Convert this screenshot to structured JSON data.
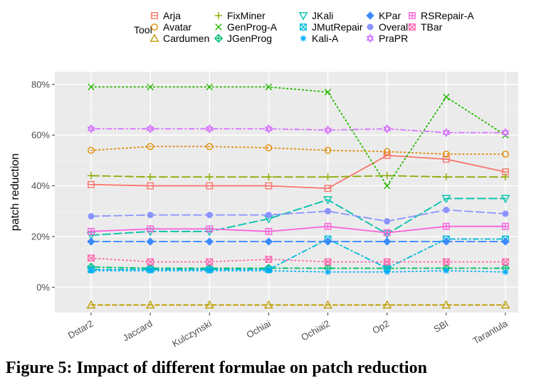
{
  "caption": "Figure 5: Impact of different formulae on patch reduction",
  "chart_data": {
    "type": "line",
    "ylabel": "patch reduction",
    "xlabel": "",
    "legend_title": "Tool",
    "legend_position": "top",
    "grid": true,
    "ylim": [
      -10,
      85
    ],
    "yticks": [
      0,
      20,
      40,
      60,
      80
    ],
    "ytick_labels": [
      "0%",
      "20%",
      "40%",
      "60%",
      "80%"
    ],
    "categories": [
      "Dstar2",
      "Jaccard",
      "Kulczynski",
      "Ochiai",
      "Ochiai2",
      "Op2",
      "SBI",
      "Tarantula"
    ],
    "series": [
      {
        "name": "Arja",
        "color": "#F8766D",
        "marker": "square-cross",
        "dash": "solid",
        "values": [
          40.5,
          40,
          40,
          40,
          39,
          52,
          50.5,
          45.5
        ]
      },
      {
        "name": "Avatar",
        "color": "#E18A00",
        "marker": "circle-open",
        "dash": "dotted",
        "values": [
          54,
          55.5,
          55.5,
          55,
          54,
          53.5,
          52.5,
          52.5
        ]
      },
      {
        "name": "Cardumen",
        "color": "#BE9C00",
        "marker": "triangle-open",
        "dash": "dashed",
        "values": [
          -7,
          -7,
          -7,
          -7,
          -7,
          -7,
          -7,
          -7
        ]
      },
      {
        "name": "FixMiner",
        "color": "#8CAB00",
        "marker": "plus",
        "dash": "longdash",
        "values": [
          44,
          43.5,
          43.5,
          43.5,
          43.5,
          44,
          43.5,
          43.5
        ]
      },
      {
        "name": "GenProg-A",
        "color": "#24B700",
        "marker": "x",
        "dash": "dotted",
        "values": [
          79,
          79,
          79,
          79,
          77,
          40,
          75,
          60
        ]
      },
      {
        "name": "JGenProg",
        "color": "#00BE70",
        "marker": "diamond-open",
        "dash": "dotdash",
        "values": [
          8,
          7.5,
          7.5,
          7.5,
          7.5,
          7.5,
          7.5,
          7.5
        ]
      },
      {
        "name": "JKali",
        "color": "#00C1AB",
        "marker": "triangle-down-open",
        "dash": "longdash",
        "values": [
          20.5,
          22,
          22,
          27,
          34.5,
          21,
          35,
          35
        ]
      },
      {
        "name": "JMutRepair",
        "color": "#00BBDA",
        "marker": "square-x",
        "dash": "dotdash",
        "values": [
          7,
          7,
          7,
          7,
          19,
          7.5,
          19,
          19
        ]
      },
      {
        "name": "Kali-A",
        "color": "#00ACFC",
        "marker": "asterisk",
        "dash": "dotted",
        "values": [
          6.5,
          6.5,
          6.5,
          6.5,
          6,
          6,
          6.5,
          6
        ]
      },
      {
        "name": "KPar",
        "color": "#3B8BFF",
        "marker": "diamond",
        "dash": "longdash",
        "values": [
          18,
          18,
          18,
          18,
          18,
          18,
          18,
          18
        ]
      },
      {
        "name": "Overall",
        "color": "#8B93FF",
        "marker": "circle",
        "dash": "longdash",
        "values": [
          28,
          28.5,
          28.5,
          28.5,
          30,
          26,
          30.5,
          29
        ]
      },
      {
        "name": "PraPR",
        "color": "#D575FE",
        "marker": "star",
        "dash": "dotdash",
        "values": [
          62.5,
          62.5,
          62.5,
          62.5,
          62,
          62.5,
          61,
          61
        ]
      },
      {
        "name": "RSRepair-A",
        "color": "#F962DD",
        "marker": "square-plus",
        "dash": "solid",
        "values": [
          22,
          23,
          23,
          22,
          24,
          21.5,
          24,
          24
        ]
      },
      {
        "name": "TBar",
        "color": "#FF65AC",
        "marker": "square-x",
        "dash": "dotted",
        "values": [
          11.5,
          10,
          10,
          11,
          10,
          10,
          10,
          10
        ]
      }
    ]
  }
}
